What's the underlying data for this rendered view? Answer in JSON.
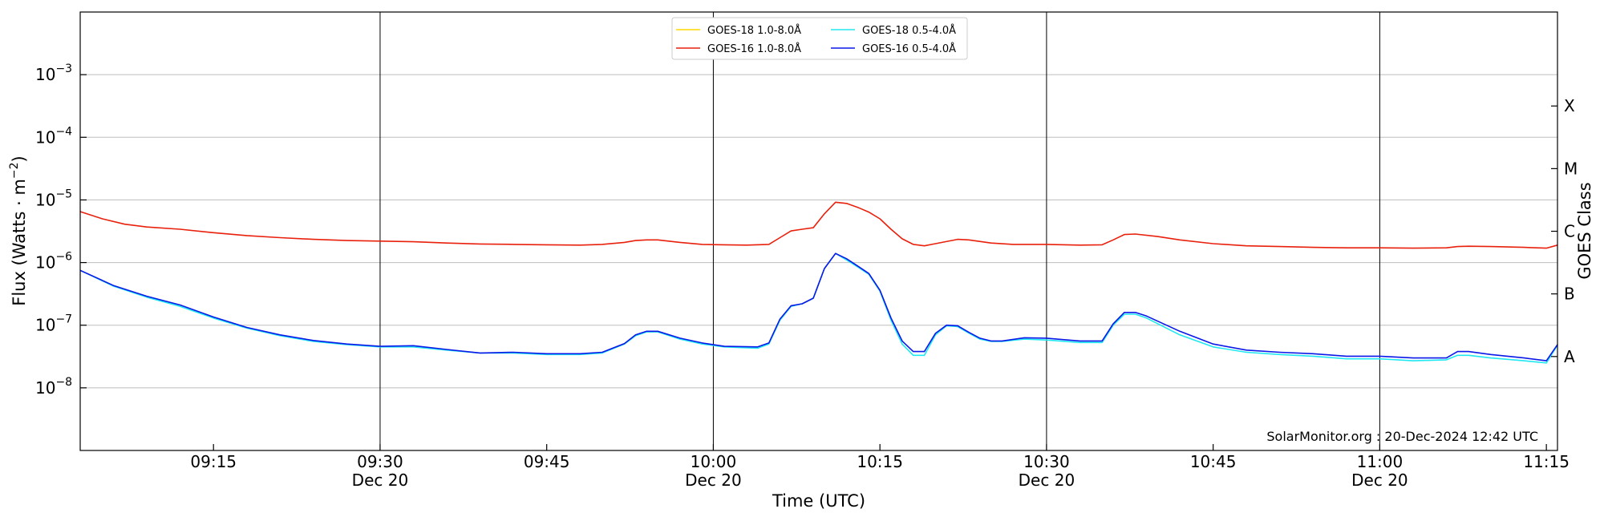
{
  "chart_data": {
    "type": "line",
    "xlabel": "Time (UTC)",
    "ylabel": "Flux (Watts · m",
    "ylabel_exponent": "−2",
    "ylabel_close": ")",
    "y2label": "GOES Class",
    "yscale": "log",
    "xlim": [
      "09:03",
      "11:16"
    ],
    "ylim": [
      1e-09,
      0.01
    ],
    "grid": "horizontal",
    "legend_position": "top-center",
    "footnote": "SolarMonitor.org : 20-Dec-2024 12:42 UTC",
    "x_ticks": [
      {
        "time": "09:15",
        "date": ""
      },
      {
        "time": "09:30",
        "date": "Dec 20"
      },
      {
        "time": "09:45",
        "date": ""
      },
      {
        "time": "10:00",
        "date": "Dec 20"
      },
      {
        "time": "10:15",
        "date": ""
      },
      {
        "time": "10:30",
        "date": "Dec 20"
      },
      {
        "time": "10:45",
        "date": ""
      },
      {
        "time": "11:00",
        "date": "Dec 20"
      },
      {
        "time": "11:15",
        "date": ""
      }
    ],
    "y_ticks": [
      {
        "value": 1e-08,
        "label": "10",
        "exp": "−8"
      },
      {
        "value": 1e-07,
        "label": "10",
        "exp": "−7"
      },
      {
        "value": 1e-06,
        "label": "10",
        "exp": "−6"
      },
      {
        "value": 1e-05,
        "label": "10",
        "exp": "−5"
      },
      {
        "value": 0.0001,
        "label": "10",
        "exp": "−4"
      },
      {
        "value": 0.001,
        "label": "10",
        "exp": "−3"
      }
    ],
    "class_ticks": [
      {
        "label": "A",
        "value": 3.16e-08
      },
      {
        "label": "B",
        "value": 3.16e-07
      },
      {
        "label": "C",
        "value": 3.16e-06
      },
      {
        "label": "M",
        "value": 3.16e-05
      },
      {
        "label": "X",
        "value": 0.000316
      }
    ],
    "vertical_lines": [
      "09:30",
      "10:00",
      "10:30",
      "11:00"
    ],
    "series": [
      {
        "name": "GOES-18 1.0-8.0Å",
        "color": "#ffd700",
        "x": [],
        "values": []
      },
      {
        "name": "GOES-16 1.0-8.0Å",
        "color": "#e8200c",
        "x": [
          "09:03",
          "09:05",
          "09:07",
          "09:09",
          "09:12",
          "09:15",
          "09:18",
          "09:21",
          "09:24",
          "09:27",
          "09:30",
          "09:33",
          "09:36",
          "09:39",
          "09:42",
          "09:45",
          "09:48",
          "09:50",
          "09:52",
          "09:53",
          "09:54",
          "09:55",
          "09:57",
          "09:59",
          "10:01",
          "10:03",
          "10:05",
          "10:06",
          "10:07",
          "10:08",
          "10:09",
          "10:10",
          "10:11",
          "10:12",
          "10:13",
          "10:14",
          "10:15",
          "10:16",
          "10:17",
          "10:18",
          "10:19",
          "10:20",
          "10:22",
          "10:23",
          "10:25",
          "10:27",
          "10:30",
          "10:33",
          "10:35",
          "10:36",
          "10:37",
          "10:38",
          "10:40",
          "10:42",
          "10:45",
          "10:48",
          "10:51",
          "10:54",
          "10:57",
          "11:00",
          "11:03",
          "11:06",
          "11:07",
          "11:08",
          "11:10",
          "11:13",
          "11:15",
          "11:16"
        ],
        "values": [
          6.5e-06,
          5e-06,
          4.1e-06,
          3.7e-06,
          3.4e-06,
          3e-06,
          2.7e-06,
          2.5e-06,
          2.35e-06,
          2.25e-06,
          2.2e-06,
          2.15e-06,
          2.05e-06,
          1.98e-06,
          1.95e-06,
          1.92e-06,
          1.9e-06,
          1.95e-06,
          2.1e-06,
          2.25e-06,
          2.3e-06,
          2.3e-06,
          2.1e-06,
          1.95e-06,
          1.92e-06,
          1.9e-06,
          1.95e-06,
          2.5e-06,
          3.2e-06,
          3.4e-06,
          3.6e-06,
          6e-06,
          9.2e-06,
          8.8e-06,
          7.6e-06,
          6.4e-06,
          5e-06,
          3.4e-06,
          2.4e-06,
          1.95e-06,
          1.85e-06,
          2e-06,
          2.35e-06,
          2.3e-06,
          2.05e-06,
          1.95e-06,
          1.95e-06,
          1.9e-06,
          1.92e-06,
          2.3e-06,
          2.8e-06,
          2.85e-06,
          2.6e-06,
          2.3e-06,
          2e-06,
          1.85e-06,
          1.8e-06,
          1.75e-06,
          1.72e-06,
          1.72e-06,
          1.7e-06,
          1.72e-06,
          1.8e-06,
          1.82e-06,
          1.8e-06,
          1.75e-06,
          1.7e-06,
          1.9e-06
        ]
      },
      {
        "name": "GOES-18 0.5-4.0Å",
        "color": "#20e8f0",
        "x": [
          "09:03",
          "09:06",
          "09:09",
          "09:12",
          "09:15",
          "09:18",
          "09:21",
          "09:24",
          "09:27",
          "09:30",
          "09:33",
          "09:36",
          "09:39",
          "09:42",
          "09:45",
          "09:48",
          "09:50",
          "09:52",
          "09:53",
          "09:54",
          "09:55",
          "09:57",
          "09:59",
          "10:01",
          "10:04",
          "10:05",
          "10:06",
          "10:07",
          "10:08",
          "10:09",
          "10:10",
          "10:11",
          "10:12",
          "10:13",
          "10:14",
          "10:15",
          "10:16",
          "10:17",
          "10:18",
          "10:19",
          "10:20",
          "10:21",
          "10:22",
          "10:23",
          "10:24",
          "10:25",
          "10:26",
          "10:28",
          "10:30",
          "10:33",
          "10:35",
          "10:36",
          "10:37",
          "10:38",
          "10:39",
          "10:42",
          "10:45",
          "10:48",
          "10:51",
          "10:54",
          "10:57",
          "11:00",
          "11:03",
          "11:06",
          "11:07",
          "11:08",
          "11:10",
          "11:13",
          "11:15",
          "11:16"
        ],
        "values": [
          7.5e-07,
          4.2e-07,
          2.8e-07,
          2e-07,
          1.3e-07,
          9e-08,
          6.8e-08,
          5.5e-08,
          4.9e-08,
          4.5e-08,
          4.5e-08,
          4e-08,
          3.6e-08,
          3.6e-08,
          3.4e-08,
          3.4e-08,
          3.6e-08,
          5e-08,
          6.8e-08,
          7.8e-08,
          7.8e-08,
          6e-08,
          5e-08,
          4.5e-08,
          4.3e-08,
          5e-08,
          1.2e-07,
          2e-07,
          2.2e-07,
          2.7e-07,
          8e-07,
          1.4e-06,
          1.1e-06,
          8.5e-07,
          6.5e-07,
          3.5e-07,
          1.2e-07,
          5e-08,
          3.3e-08,
          3.3e-08,
          7e-08,
          9.8e-08,
          9.5e-08,
          7.5e-08,
          6e-08,
          5.5e-08,
          5.5e-08,
          6e-08,
          5.8e-08,
          5.3e-08,
          5.3e-08,
          1e-07,
          1.5e-07,
          1.5e-07,
          1.3e-07,
          7e-08,
          4.5e-08,
          3.7e-08,
          3.4e-08,
          3.2e-08,
          2.9e-08,
          2.9e-08,
          2.7e-08,
          2.8e-08,
          3.3e-08,
          3.3e-08,
          3e-08,
          2.7e-08,
          2.5e-08,
          4.8e-08
        ]
      },
      {
        "name": "GOES-16 0.5-4.0Å",
        "color": "#0a18e8",
        "x": [
          "09:03",
          "09:06",
          "09:09",
          "09:12",
          "09:15",
          "09:18",
          "09:21",
          "09:24",
          "09:27",
          "09:30",
          "09:33",
          "09:36",
          "09:39",
          "09:42",
          "09:45",
          "09:48",
          "09:50",
          "09:52",
          "09:53",
          "09:54",
          "09:55",
          "09:57",
          "09:59",
          "10:01",
          "10:04",
          "10:05",
          "10:06",
          "10:07",
          "10:08",
          "10:09",
          "10:10",
          "10:11",
          "10:12",
          "10:13",
          "10:14",
          "10:15",
          "10:16",
          "10:17",
          "10:18",
          "10:19",
          "10:20",
          "10:21",
          "10:22",
          "10:23",
          "10:24",
          "10:25",
          "10:26",
          "10:28",
          "10:30",
          "10:33",
          "10:35",
          "10:36",
          "10:37",
          "10:38",
          "10:39",
          "10:42",
          "10:45",
          "10:48",
          "10:51",
          "10:54",
          "10:57",
          "11:00",
          "11:03",
          "11:06",
          "11:07",
          "11:08",
          "11:10",
          "11:13",
          "11:15",
          "11:16"
        ],
        "values": [
          7.5e-07,
          4.3e-07,
          2.9e-07,
          2.1e-07,
          1.35e-07,
          9.2e-08,
          7e-08,
          5.7e-08,
          5e-08,
          4.6e-08,
          4.7e-08,
          4.1e-08,
          3.6e-08,
          3.7e-08,
          3.5e-08,
          3.5e-08,
          3.7e-08,
          5.1e-08,
          7e-08,
          8e-08,
          8e-08,
          6.2e-08,
          5.2e-08,
          4.6e-08,
          4.5e-08,
          5.2e-08,
          1.25e-07,
          2.05e-07,
          2.2e-07,
          2.7e-07,
          8e-07,
          1.4e-06,
          1.15e-06,
          8.8e-07,
          6.7e-07,
          3.6e-07,
          1.3e-07,
          5.6e-08,
          3.8e-08,
          3.8e-08,
          7.4e-08,
          1e-07,
          9.8e-08,
          7.7e-08,
          6.2e-08,
          5.6e-08,
          5.6e-08,
          6.3e-08,
          6.2e-08,
          5.6e-08,
          5.6e-08,
          1.05e-07,
          1.6e-07,
          1.6e-07,
          1.4e-07,
          8e-08,
          5e-08,
          4e-08,
          3.7e-08,
          3.5e-08,
          3.2e-08,
          3.2e-08,
          3e-08,
          3e-08,
          3.8e-08,
          3.8e-08,
          3.4e-08,
          3e-08,
          2.7e-08,
          4.9e-08
        ]
      }
    ]
  }
}
